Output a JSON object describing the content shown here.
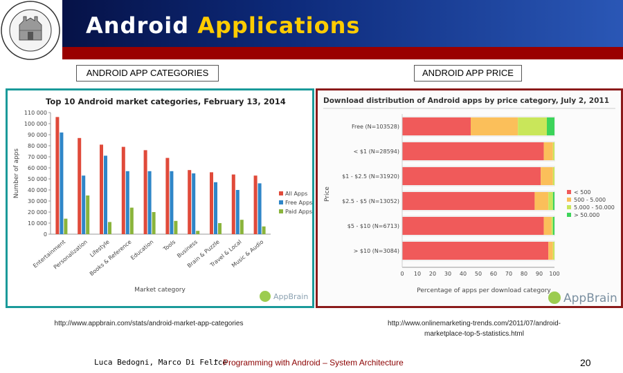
{
  "slide": {
    "title_part1": "Android",
    "title_part2": "Applications",
    "left_label": "ANDROID APP CATEGORIES",
    "right_label": "ANDROID APP PRICE",
    "left_url": "http://www.appbrain.com/stats/android-market-app-categories",
    "right_url_line1": "http://www.onlinemarketing-trends.com/2011/07/android-",
    "right_url_line2": "marketplace-top-5-statistics.html",
    "footer_authors": "Luca Bedogni, Marco Di Felice",
    "footer_dash": "-",
    "footer_course": "Programming with Android – System Architecture",
    "page_number": "20",
    "logo_ring_text": "ALMA MATER STUDIORUM",
    "logo_year": "A.D. 1088",
    "brand_name": "AppBrain",
    "colors": {
      "header_blue": "#0d2a7a",
      "header_red": "#9a0000",
      "title_yellow": "#ffcc00",
      "left_border": "#1a9a9a",
      "right_border": "#8b1a1a"
    }
  },
  "chart_data": [
    {
      "type": "bar",
      "title": "Top 10 Android market categories, February 13, 2014",
      "xlabel": "Market category",
      "ylabel": "Number of apps",
      "ylim": [
        0,
        110000
      ],
      "yticks": [
        "0",
        "10 000",
        "20 000",
        "30 000",
        "40 000",
        "50 000",
        "60 000",
        "70 000",
        "80 000",
        "90 000",
        "100 000",
        "110 000"
      ],
      "categories": [
        "Entertainment",
        "Personalization",
        "Lifestyle",
        "Books & Reference",
        "Education",
        "Tools",
        "Business",
        "Brain & Puzzle",
        "Travel & Local",
        "Music & Audio"
      ],
      "series": [
        {
          "name": "All Apps",
          "color": "#e04a3a",
          "values": [
            106000,
            87000,
            81000,
            79000,
            76000,
            69000,
            58000,
            56000,
            54000,
            53000
          ]
        },
        {
          "name": "Free Apps",
          "color": "#2f86c8",
          "values": [
            92000,
            53000,
            71000,
            57000,
            57000,
            57000,
            55000,
            47000,
            40000,
            46000
          ]
        },
        {
          "name": "Paid Apps",
          "color": "#8ab43c",
          "values": [
            14000,
            35000,
            11000,
            24000,
            20000,
            12000,
            3000,
            10000,
            13000,
            7000
          ]
        }
      ],
      "legend": "right",
      "grid": false
    },
    {
      "type": "bar",
      "orientation": "horizontal",
      "stacked": true,
      "title": "Download distribution of Android apps by price category, July 2, 2011",
      "xlabel": "Percentage of apps per download category",
      "ylabel": "Price",
      "xlim": [
        0,
        100
      ],
      "xticks": [
        "0",
        "10",
        "20",
        "30",
        "40",
        "50",
        "60",
        "70",
        "80",
        "90",
        "100"
      ],
      "categories": [
        "Free (N=103528)",
        "< $1 (N=28594)",
        "$1 - $2.5 (N=31920)",
        "$2.5 - $5 (N=13052)",
        "$5 - $10 (N=6713)",
        "> $10 (N=3084)"
      ],
      "series": [
        {
          "name": "< 500",
          "color": "#f05a5a",
          "values": [
            45,
            93,
            91,
            87,
            93,
            96
          ]
        },
        {
          "name": "500 - 5.000",
          "color": "#fbbf5a",
          "values": [
            31,
            6,
            8,
            9,
            5,
            3
          ]
        },
        {
          "name": "5.000 - 50.000",
          "color": "#c9e65a",
          "values": [
            19,
            1,
            1,
            3,
            1,
            1
          ]
        },
        {
          "name": "> 50.000",
          "color": "#3cd45a",
          "values": [
            5,
            0,
            0,
            1,
            1,
            0
          ]
        }
      ],
      "legend": "right",
      "grid": false
    }
  ]
}
